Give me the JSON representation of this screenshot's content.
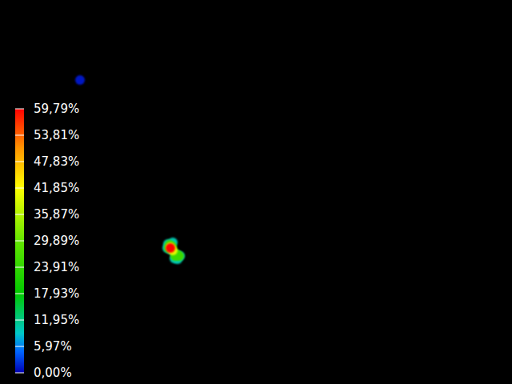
{
  "chart_data": {
    "type": "heatmap",
    "xlim": [
      0,
      640
    ],
    "ylim": [
      0,
      480
    ],
    "tick_labels": false,
    "points": [
      {
        "x": 100,
        "y": 380,
        "value": 1
      },
      {
        "x": 210,
        "y": 175,
        "value": 10
      },
      {
        "x": 216,
        "y": 177,
        "value": 10
      },
      {
        "x": 213,
        "y": 168,
        "value": 10
      },
      {
        "x": 220,
        "y": 162,
        "value": 10
      },
      {
        "x": 225,
        "y": 160,
        "value": 10
      },
      {
        "x": 218,
        "y": 157,
        "value": 10
      },
      {
        "x": 222,
        "y": 156,
        "value": 10
      },
      {
        "x": 209,
        "y": 170,
        "value": 10
      },
      {
        "x": 212,
        "y": 174,
        "value": 25
      },
      {
        "x": 215,
        "y": 172,
        "value": 25
      },
      {
        "x": 221,
        "y": 162,
        "value": 25
      },
      {
        "x": 224,
        "y": 160,
        "value": 25
      },
      {
        "x": 219,
        "y": 160,
        "value": 25
      },
      {
        "x": 211,
        "y": 170,
        "value": 25
      },
      {
        "x": 213,
        "y": 171,
        "value": 40
      },
      {
        "x": 216,
        "y": 167,
        "value": 40
      },
      {
        "x": 213,
        "y": 170,
        "value": 59.79
      }
    ],
    "colorbar": {
      "range": [
        0,
        59.79
      ],
      "ticks": [
        {
          "value": 0,
          "label": "0,00%"
        },
        {
          "value": 5.97,
          "label": "5,97%"
        },
        {
          "value": 11.95,
          "label": "11,95%"
        },
        {
          "value": 17.93,
          "label": "17,93%"
        },
        {
          "value": 23.91,
          "label": "23,91%"
        },
        {
          "value": 29.89,
          "label": "29,89%"
        },
        {
          "value": 35.87,
          "label": "35,87%"
        },
        {
          "value": 41.85,
          "label": "41,85%"
        },
        {
          "value": 47.83,
          "label": "47,83%"
        },
        {
          "value": 53.81,
          "label": "53,81%"
        },
        {
          "value": 59.79,
          "label": "59,79%"
        }
      ]
    }
  }
}
